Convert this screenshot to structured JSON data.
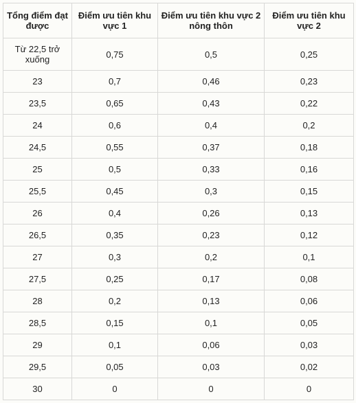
{
  "table": {
    "columns": [
      "Tổng điểm đạt được",
      "Điểm ưu tiên khu vực 1",
      "Điểm ưu tiên khu vực 2 nông thôn",
      "Điểm ưu tiên khu vực 2"
    ],
    "rows": [
      [
        "Từ 22,5 trở xuống",
        "0,75",
        "0,5",
        "0,25"
      ],
      [
        "23",
        "0,7",
        "0,46",
        "0,23"
      ],
      [
        "23,5",
        "0,65",
        "0,43",
        "0,22"
      ],
      [
        "24",
        "0,6",
        "0,4",
        "0,2"
      ],
      [
        "24,5",
        "0,55",
        "0,37",
        "0,18"
      ],
      [
        "25",
        "0,5",
        "0,33",
        "0,16"
      ],
      [
        "25,5",
        "0,45",
        "0,3",
        "0,15"
      ],
      [
        "26",
        "0,4",
        "0,26",
        "0,13"
      ],
      [
        "26,5",
        "0,35",
        "0,23",
        "0,12"
      ],
      [
        "27",
        "0,3",
        "0,2",
        "0,1"
      ],
      [
        "27,5",
        "0,25",
        "0,17",
        "0,08"
      ],
      [
        "28",
        "0,2",
        "0,13",
        "0,06"
      ],
      [
        "28,5",
        "0,15",
        "0,1",
        "0,05"
      ],
      [
        "29",
        "0,1",
        "0,06",
        "0,03"
      ],
      [
        "29,5",
        "0,05",
        "0,03",
        "0,02"
      ],
      [
        "30",
        "0",
        "0",
        "0"
      ]
    ]
  }
}
